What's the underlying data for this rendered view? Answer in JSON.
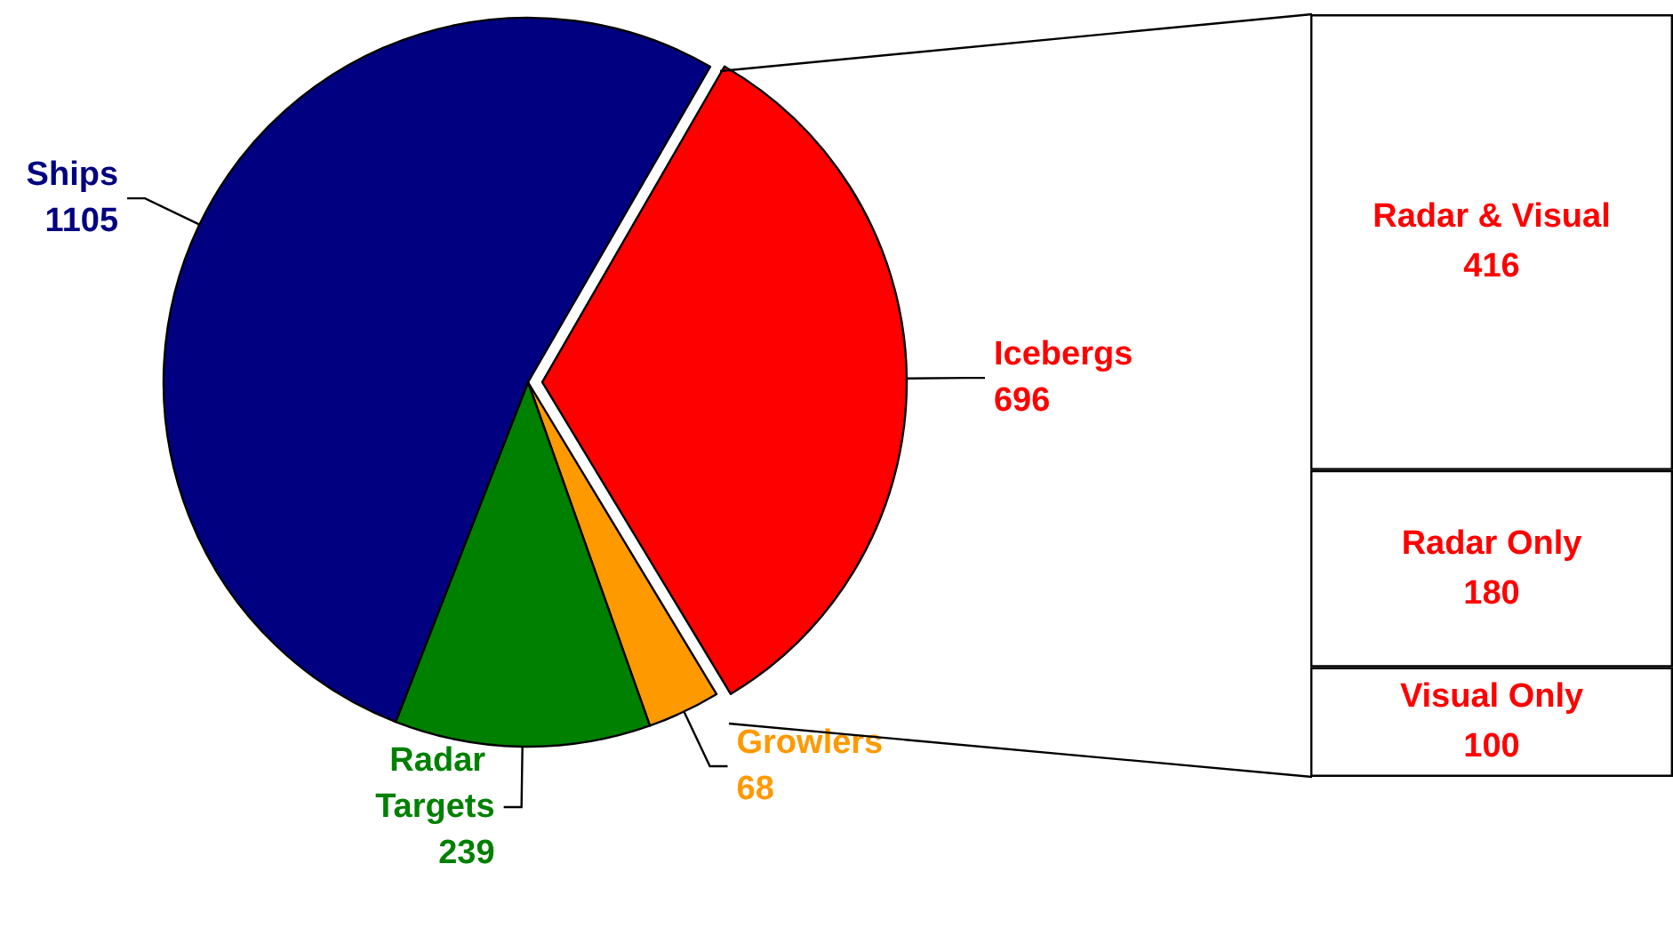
{
  "chart_data": [
    {
      "type": "pie",
      "categories": [
        "Icebergs",
        "Growlers",
        "Radar Targets",
        "Ships"
      ],
      "values": [
        696,
        68,
        239,
        1105
      ],
      "colors": [
        "#ff0000",
        "#ff9900",
        "#008000",
        "#000080"
      ],
      "data_labels": true
    },
    {
      "type": "other",
      "categories": [
        null
      ],
      "data_labels": true,
      "series": [
        {
          "name": "Visual Only",
          "color": "#ffffff",
          "values": [
            100
          ]
        },
        {
          "name": "Radar Only",
          "color": "#ffffff",
          "values": [
            180
          ]
        },
        {
          "name": "Radar & Visual",
          "color": "#ffffff",
          "values": [
            416
          ]
        }
      ]
    }
  ]
}
